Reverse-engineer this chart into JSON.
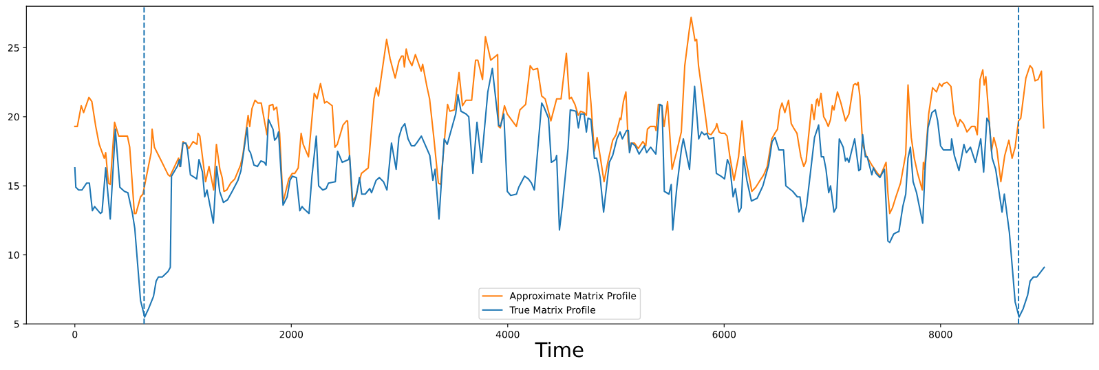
{
  "chart_data": {
    "type": "line",
    "xlabel": "Time",
    "xlim": [
      -448,
      9408
    ],
    "ylim": [
      5,
      28
    ],
    "xticks": [
      0,
      2000,
      4000,
      6000,
      8000
    ],
    "yticks": [
      5,
      10,
      15,
      20,
      25
    ],
    "grid": false,
    "legend": "bottom",
    "line_style": "solid",
    "marker": "none",
    "series": [
      {
        "name": "Approximate Matrix Profile",
        "color": "#ff7f0e",
        "x": [
          0,
          23,
          59,
          81,
          130,
          157,
          193,
          225,
          272,
          285,
          310,
          327,
          367,
          406,
          469,
          486,
          507,
          550,
          565,
          607,
          629,
          682,
          705,
          714,
          735,
          799,
          862,
          879,
          958,
          968,
          1000,
          1032,
          1053,
          1092,
          1128,
          1138,
          1155,
          1208,
          1240,
          1283,
          1308,
          1340,
          1361,
          1378,
          1404,
          1440,
          1478,
          1531,
          1552,
          1601,
          1616,
          1637,
          1665,
          1691,
          1722,
          1775,
          1797,
          1829,
          1839,
          1865,
          1892,
          1924,
          1977,
          2009,
          2032,
          2064,
          2091,
          2110,
          2159,
          2212,
          2238,
          2270,
          2308,
          2329,
          2378,
          2403,
          2425,
          2478,
          2510,
          2520,
          2541,
          2563,
          2594,
          2648,
          2711,
          2764,
          2785,
          2806,
          2881,
          2913,
          2960,
          2994,
          3019,
          3034,
          3045,
          3062,
          3083,
          3115,
          3147,
          3200,
          3214,
          3253,
          3278,
          3317,
          3359,
          3380,
          3444,
          3465,
          3507,
          3550,
          3582,
          3614,
          3667,
          3703,
          3724,
          3767,
          3794,
          3843,
          3907,
          3915,
          3932,
          3970,
          3996,
          4080,
          4113,
          4166,
          4208,
          4234,
          4276,
          4314,
          4346,
          4399,
          4452,
          4493,
          4515,
          4542,
          4570,
          4589,
          4621,
          4652,
          4673,
          4705,
          4727,
          4744,
          4769,
          4800,
          4826,
          4853,
          4890,
          4927,
          4970,
          5001,
          5037,
          5046,
          5069,
          5092,
          5113,
          5128,
          5138,
          5170,
          5206,
          5249,
          5276,
          5291,
          5318,
          5361,
          5371,
          5392,
          5424,
          5445,
          5477,
          5519,
          5562,
          5604,
          5636,
          5678,
          5695,
          5731,
          5746,
          5763,
          5816,
          5848,
          5879,
          5922,
          5932,
          5953,
          5974,
          6006,
          6027,
          6053,
          6091,
          6133,
          6165,
          6197,
          6235,
          6256,
          6292,
          6324,
          6366,
          6398,
          6440,
          6468,
          6493,
          6514,
          6535,
          6561,
          6595,
          6620,
          6641,
          6673,
          6709,
          6736,
          6757,
          6810,
          6831,
          6853,
          6863,
          6874,
          6895,
          6920,
          6941,
          6962,
          6983,
          7000,
          7015,
          7047,
          7079,
          7121,
          7153,
          7195,
          7212,
          7227,
          7238,
          7254,
          7280,
          7312,
          7365,
          7418,
          7443,
          7496,
          7513,
          7530,
          7555,
          7587,
          7630,
          7678,
          7699,
          7729,
          7757,
          7788,
          7831,
          7841,
          7852,
          7890,
          7926,
          7962,
          7990,
          8011,
          8026,
          8060,
          8096,
          8123,
          8159,
          8180,
          8212,
          8244,
          8286,
          8318,
          8339,
          8365,
          8390,
          8403,
          8418,
          8445,
          8470,
          8492,
          8519,
          8557,
          8593,
          8631,
          8661,
          8689,
          8720,
          8741,
          8788,
          8826,
          8848,
          8873,
          8901,
          8932,
          8943,
          8953
        ],
        "values": [
          19.3,
          19.3,
          20.8,
          20.3,
          21.4,
          21.1,
          19.3,
          18.0,
          17.0,
          17.4,
          15.2,
          15.1,
          19.6,
          18.6,
          18.6,
          18.6,
          17.8,
          13.0,
          13.0,
          14.2,
          14.4,
          16.5,
          17.4,
          19.1,
          17.8,
          16.8,
          15.8,
          15.7,
          17.0,
          16.4,
          18.2,
          18.0,
          17.7,
          18.2,
          18.0,
          18.8,
          18.6,
          15.3,
          16.4,
          14.7,
          18.0,
          16.2,
          15.6,
          14.6,
          14.7,
          15.2,
          15.5,
          16.5,
          17.2,
          20.1,
          19.3,
          20.6,
          21.2,
          21.0,
          21.0,
          18.7,
          20.8,
          20.9,
          20.5,
          20.7,
          18.8,
          13.8,
          15.5,
          15.9,
          15.9,
          16.3,
          18.8,
          18.0,
          17.1,
          21.7,
          21.3,
          22.4,
          21.0,
          21.1,
          20.8,
          17.8,
          18.0,
          19.4,
          19.7,
          19.7,
          16.8,
          13.9,
          14.2,
          15.9,
          16.3,
          21.3,
          22.1,
          21.5,
          25.6,
          24.2,
          22.8,
          24.0,
          24.4,
          24.4,
          23.6,
          24.9,
          24.2,
          23.7,
          24.5,
          23.3,
          23.8,
          22.2,
          21.3,
          18.5,
          15.2,
          15.1,
          20.9,
          20.4,
          20.5,
          23.2,
          20.8,
          21.2,
          21.2,
          24.1,
          24.1,
          22.7,
          25.8,
          24.1,
          24.5,
          19.3,
          19.2,
          20.8,
          20.2,
          19.3,
          20.5,
          20.9,
          23.7,
          23.4,
          23.5,
          21.5,
          21.3,
          19.7,
          21.3,
          21.3,
          22.8,
          24.6,
          21.3,
          21.4,
          20.9,
          20.1,
          20.4,
          20.3,
          20.1,
          23.2,
          21.0,
          17.5,
          18.5,
          17.2,
          15.3,
          16.8,
          18.3,
          18.7,
          19.9,
          19.8,
          21.1,
          21.8,
          18.2,
          17.5,
          18.1,
          18.1,
          17.7,
          18.2,
          17.9,
          19.1,
          19.3,
          19.3,
          19.0,
          20.9,
          20.8,
          19.3,
          21.1,
          16.2,
          17.5,
          18.9,
          23.7,
          26.3,
          27.2,
          25.5,
          25.6,
          23.7,
          20.7,
          18.8,
          18.7,
          19.2,
          19.5,
          18.9,
          18.8,
          18.8,
          18.6,
          17.1,
          15.4,
          17.1,
          19.7,
          17.0,
          15.5,
          14.6,
          14.9,
          15.3,
          15.8,
          16.4,
          18.4,
          18.8,
          19.1,
          20.5,
          21.0,
          20.3,
          21.2,
          19.5,
          19.2,
          18.8,
          17.1,
          16.4,
          16.8,
          20.9,
          19.8,
          21.2,
          21.3,
          20.8,
          21.7,
          20.0,
          19.7,
          19.3,
          19.8,
          20.8,
          20.5,
          21.8,
          21.0,
          19.7,
          20.2,
          22.3,
          22.4,
          22.3,
          22.5,
          21.5,
          18.0,
          17.2,
          16.5,
          15.9,
          15.7,
          16.7,
          14.5,
          13.0,
          13.4,
          14.2,
          15.2,
          17.3,
          22.3,
          18.5,
          17.0,
          15.9,
          14.7,
          16.7,
          16.2,
          20.2,
          22.1,
          21.8,
          22.4,
          22.2,
          22.4,
          22.5,
          22.2,
          20.2,
          19.3,
          19.8,
          19.5,
          18.9,
          19.3,
          19.3,
          18.7,
          22.7,
          23.4,
          22.3,
          22.9,
          20.2,
          17.5,
          18.5,
          17.7,
          15.3,
          17.2,
          18.3,
          17.0,
          17.8,
          19.7,
          19.9,
          22.8,
          23.7,
          23.5,
          22.6,
          22.7,
          23.3,
          20.8,
          19.2
        ]
      },
      {
        "name": "True Matrix Profile",
        "color": "#1f77b4",
        "x": [
          0,
          9,
          35,
          66,
          109,
          134,
          162,
          183,
          204,
          236,
          251,
          285,
          300,
          327,
          374,
          416,
          458,
          490,
          532,
          554,
          564,
          607,
          645,
          681,
          727,
          751,
          772,
          808,
          861,
          882,
          893,
          946,
          967,
          977,
          999,
          1026,
          1041,
          1068,
          1126,
          1147,
          1179,
          1200,
          1221,
          1280,
          1310,
          1338,
          1373,
          1412,
          1454,
          1507,
          1535,
          1592,
          1607,
          1623,
          1655,
          1687,
          1719,
          1751,
          1767,
          1789,
          1831,
          1846,
          1867,
          1882,
          1924,
          1962,
          1988,
          2009,
          2047,
          2079,
          2100,
          2121,
          2164,
          2191,
          2231,
          2253,
          2291,
          2322,
          2344,
          2407,
          2428,
          2471,
          2530,
          2539,
          2570,
          2602,
          2630,
          2651,
          2683,
          2725,
          2742,
          2784,
          2814,
          2852,
          2884,
          2926,
          2969,
          2994,
          3021,
          3049,
          3079,
          3110,
          3138,
          3159,
          3202,
          3280,
          3308,
          3329,
          3365,
          3413,
          3441,
          3519,
          3540,
          3568,
          3615,
          3640,
          3678,
          3716,
          3757,
          3816,
          3858,
          3916,
          3932,
          3964,
          3996,
          4028,
          4081,
          4102,
          4155,
          4191,
          4219,
          4246,
          4314,
          4335,
          4377,
          4403,
          4441,
          4452,
          4478,
          4504,
          4557,
          4578,
          4631,
          4653,
          4674,
          4706,
          4727,
          4742,
          4769,
          4801,
          4822,
          4854,
          4886,
          4939,
          4970,
          5009,
          5038,
          5059,
          5098,
          5115,
          5125,
          5144,
          5178,
          5214,
          5263,
          5284,
          5320,
          5369,
          5405,
          5426,
          5447,
          5490,
          5511,
          5525,
          5564,
          5606,
          5623,
          5680,
          5727,
          5765,
          5792,
          5818,
          5839,
          5860,
          5903,
          5928,
          5970,
          6004,
          6030,
          6051,
          6083,
          6104,
          6136,
          6157,
          6178,
          6210,
          6252,
          6305,
          6358,
          6411,
          6443,
          6470,
          6506,
          6549,
          6570,
          6634,
          6676,
          6701,
          6729,
          6761,
          6835,
          6873,
          6898,
          6919,
          6941,
          6966,
          6983,
          7015,
          7036,
          7064,
          7100,
          7121,
          7136,
          7153,
          7174,
          7206,
          7244,
          7259,
          7280,
          7305,
          7322,
          7365,
          7379,
          7403,
          7439,
          7481,
          7513,
          7530,
          7566,
          7587,
          7615,
          7651,
          7678,
          7699,
          7721,
          7746,
          7778,
          7835,
          7856,
          7884,
          7920,
          7951,
          7973,
          8000,
          8026,
          8096,
          8102,
          8127,
          8170,
          8216,
          8238,
          8276,
          8322,
          8371,
          8398,
          8428,
          8449,
          8477,
          8509,
          8568,
          8589,
          8636,
          8689,
          8725,
          8763,
          8805,
          8827,
          8858,
          8890,
          8958
        ],
        "values": [
          16.3,
          14.9,
          14.7,
          14.7,
          15.2,
          15.2,
          13.2,
          13.5,
          13.3,
          13.0,
          13.1,
          16.3,
          14.9,
          12.6,
          19.1,
          14.9,
          14.6,
          14.5,
          13.0,
          11.9,
          10.9,
          6.7,
          5.5,
          6.1,
          7.0,
          8.1,
          8.4,
          8.4,
          8.8,
          9.1,
          15.7,
          16.4,
          16.9,
          16.4,
          18.1,
          18.1,
          17.6,
          15.8,
          15.5,
          16.9,
          16.0,
          14.2,
          14.7,
          12.3,
          16.4,
          14.6,
          13.8,
          14.0,
          14.6,
          15.4,
          16.1,
          19.2,
          17.6,
          17.4,
          16.5,
          16.4,
          16.8,
          16.7,
          16.5,
          19.8,
          19.1,
          18.3,
          18.5,
          18.9,
          13.6,
          14.2,
          15.4,
          15.7,
          15.6,
          13.2,
          13.5,
          13.3,
          13.0,
          15.7,
          18.6,
          15.0,
          14.7,
          14.8,
          15.2,
          15.3,
          17.5,
          16.7,
          16.9,
          17.2,
          13.5,
          14.3,
          15.6,
          14.4,
          14.4,
          14.8,
          14.5,
          15.4,
          15.6,
          15.3,
          14.7,
          18.1,
          16.2,
          18.5,
          19.2,
          19.5,
          18.4,
          17.9,
          17.9,
          18.1,
          18.6,
          17.2,
          15.4,
          16.2,
          12.6,
          18.4,
          18.0,
          20.2,
          21.6,
          20.4,
          20.2,
          20.0,
          15.9,
          19.6,
          16.7,
          21.8,
          23.5,
          19.4,
          19.3,
          20.2,
          14.6,
          14.3,
          14.4,
          14.9,
          15.7,
          15.5,
          15.2,
          14.7,
          21.0,
          20.7,
          19.9,
          16.7,
          16.9,
          17.2,
          11.8,
          13.5,
          17.7,
          20.5,
          20.4,
          19.2,
          20.2,
          20.2,
          18.9,
          19.9,
          19.8,
          17.0,
          17.0,
          15.6,
          13.1,
          16.7,
          17.2,
          18.4,
          18.9,
          18.4,
          19.0,
          19.0,
          17.4,
          18.1,
          17.9,
          17.3,
          17.9,
          17.4,
          17.8,
          17.3,
          20.9,
          20.8,
          14.6,
          14.4,
          15.1,
          11.8,
          15.0,
          17.7,
          18.4,
          16.2,
          22.2,
          18.4,
          18.9,
          18.7,
          18.8,
          18.4,
          18.5,
          15.9,
          15.7,
          15.5,
          16.9,
          16.5,
          14.2,
          14.8,
          13.1,
          13.4,
          17.1,
          15.4,
          13.9,
          14.1,
          15.0,
          16.5,
          18.2,
          18.5,
          17.6,
          17.6,
          15.0,
          14.6,
          14.2,
          14.2,
          12.4,
          13.5,
          18.5,
          19.4,
          17.1,
          17.1,
          16.2,
          14.5,
          15.0,
          13.1,
          13.4,
          18.4,
          17.8,
          16.8,
          17.0,
          16.7,
          17.4,
          18.4,
          16.1,
          16.2,
          18.7,
          17.1,
          17.1,
          15.8,
          16.3,
          15.9,
          15.6,
          16.2,
          11.0,
          10.9,
          11.5,
          11.6,
          11.7,
          13.5,
          14.4,
          17.0,
          17.8,
          15.3,
          14.5,
          12.3,
          16.1,
          19.2,
          20.3,
          20.5,
          19.7,
          17.9,
          17.6,
          17.6,
          18.4,
          17.2,
          16.1,
          18.0,
          17.4,
          17.8,
          16.7,
          18.4,
          16.0,
          19.9,
          19.6,
          17.0,
          16.2,
          13.1,
          14.4,
          11.6,
          6.6,
          5.5,
          6.1,
          7.1,
          8.1,
          8.4,
          8.4,
          9.1
        ]
      }
    ],
    "ref_lines": [
      {
        "axis": "x",
        "value": 640,
        "color": "#1f77b4",
        "line_style": "dashed"
      },
      {
        "axis": "x",
        "value": 8720,
        "color": "#1f77b4",
        "line_style": "dashed"
      }
    ]
  }
}
